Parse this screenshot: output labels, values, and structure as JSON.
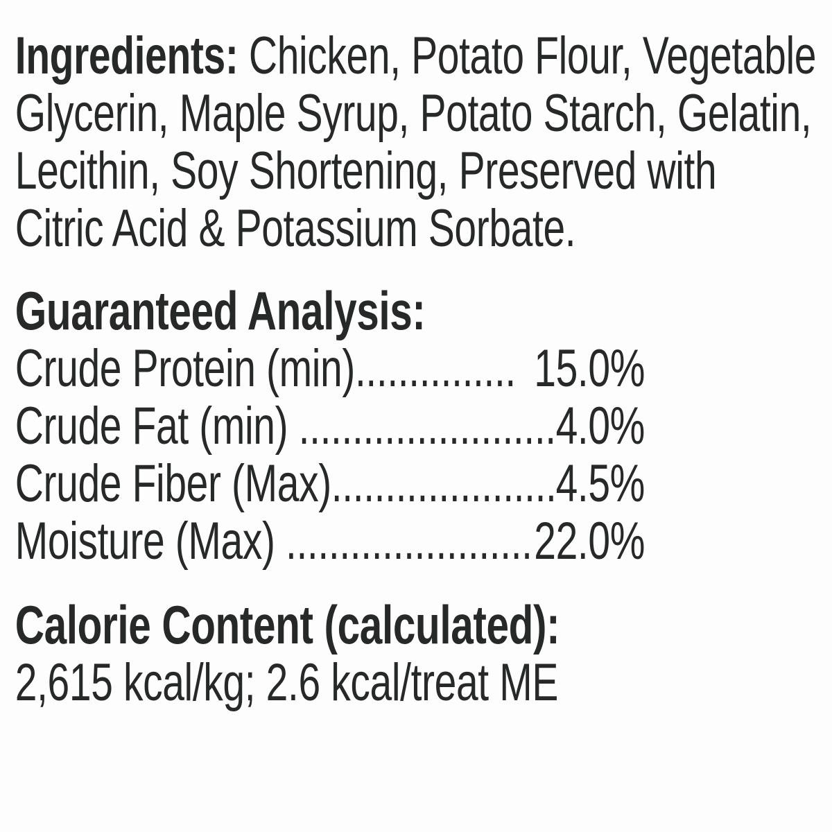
{
  "colors": {
    "text": "#262927",
    "background": "#fdfdfd"
  },
  "ingredients": {
    "label": "Ingredients:",
    "line1_rest": " Chicken, Potato Flour, Vegetable",
    "line2": "Glycerin, Maple Syrup, Potato Starch, Gelatin,",
    "line3": "Lecithin, Soy Shortening, Preserved with",
    "line4": "Citric Acid & Potassium Sorbate."
  },
  "guaranteed_analysis": {
    "heading": "Guaranteed Analysis:",
    "rows": [
      {
        "label": "Crude Protein (min)",
        "leader": "...............",
        "value": "15.0%"
      },
      {
        "label": "Crude Fat (min) ",
        "leader": ".........................",
        "value": "4.0%"
      },
      {
        "label": "Crude Fiber (Max)",
        "leader": ".....................",
        "value": "4.5%"
      },
      {
        "label": "Moisture (Max) ",
        "leader": "........................",
        "value": "22.0%"
      }
    ]
  },
  "calorie_content": {
    "heading": "Calorie Content (calculated):",
    "value": "2,615 kcal/kg; 2.6 kcal/treat ME"
  }
}
